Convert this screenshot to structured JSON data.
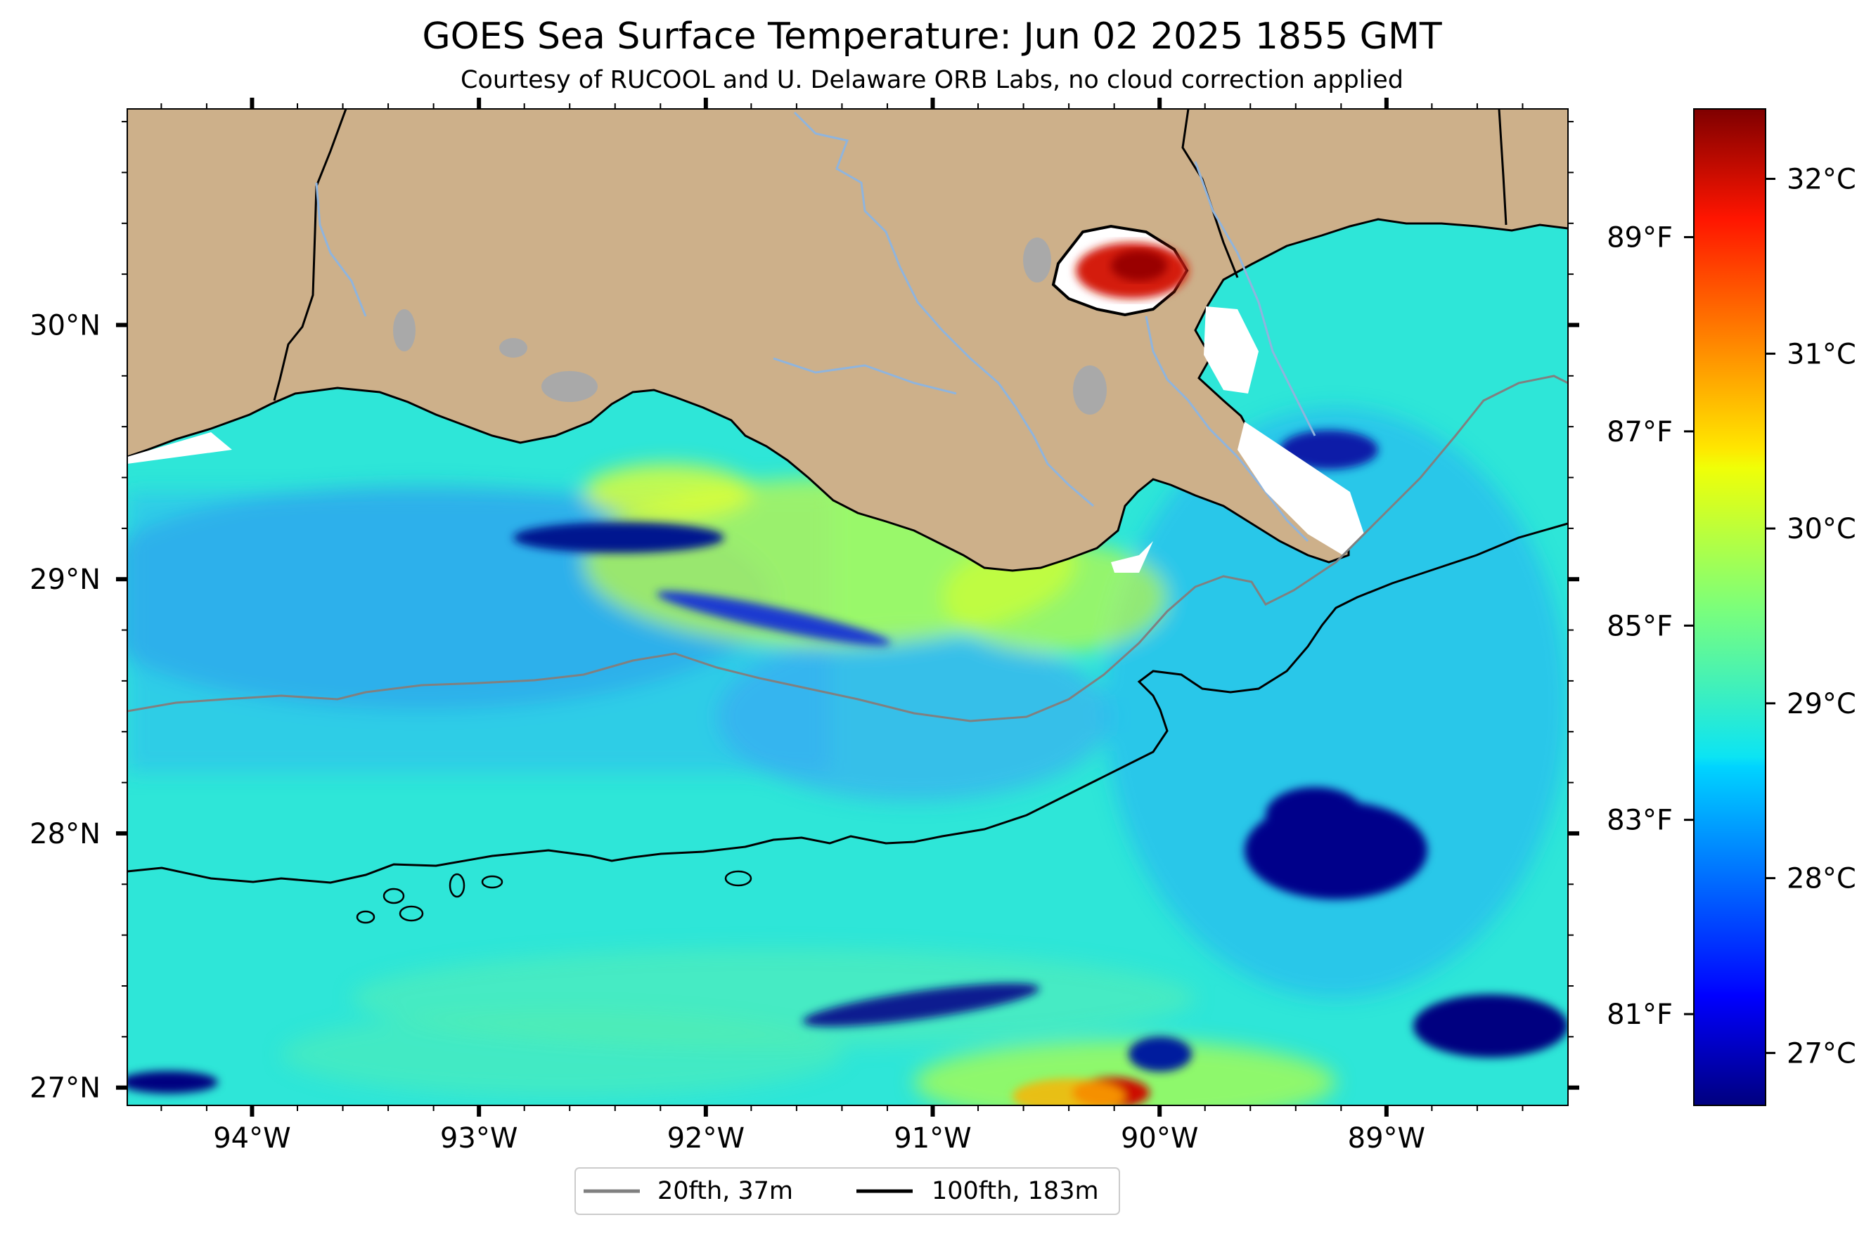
{
  "title": "GOES Sea Surface Temperature: Jun 02 2025 1855 GMT",
  "subtitle": "Courtesy of RUCOOL and U. Delaware ORB Labs, no cloud correction applied",
  "map": {
    "lon_range": [
      -94.55,
      -88.2
    ],
    "lat_range": [
      26.93,
      30.85
    ],
    "lon_ticks": [
      {
        "value": -94,
        "label": "94°W"
      },
      {
        "value": -93,
        "label": "93°W"
      },
      {
        "value": -92,
        "label": "92°W"
      },
      {
        "value": -91,
        "label": "91°W"
      },
      {
        "value": -90,
        "label": "90°W"
      },
      {
        "value": -89,
        "label": "89°W"
      }
    ],
    "lat_ticks": [
      {
        "value": 30,
        "label": "30°N"
      },
      {
        "value": 29,
        "label": "29°N"
      },
      {
        "value": 28,
        "label": "28°N"
      },
      {
        "value": 27,
        "label": "27°N"
      }
    ],
    "colors": {
      "land": "#cdb08a",
      "water": "#27e0e0",
      "lakes": "#a9a9a9",
      "rivers": "#8fb4dd",
      "coast": "#000000",
      "isobath_20": "#808080",
      "isobath_100": "#000000"
    }
  },
  "colorbar": {
    "colormap": "jet",
    "range_c": [
      26.7,
      32.4
    ],
    "celsius_ticks": [
      {
        "value": 27,
        "label": "27°C"
      },
      {
        "value": 28,
        "label": "28°C"
      },
      {
        "value": 29,
        "label": "29°C"
      },
      {
        "value": 30,
        "label": "30°C"
      },
      {
        "value": 31,
        "label": "31°C"
      },
      {
        "value": 32,
        "label": "32°C"
      }
    ],
    "fahrenheit_ticks": [
      {
        "value": 81,
        "label": "81°F"
      },
      {
        "value": 83,
        "label": "83°F"
      },
      {
        "value": 85,
        "label": "85°F"
      },
      {
        "value": 87,
        "label": "87°F"
      },
      {
        "value": 89,
        "label": "89°F"
      }
    ]
  },
  "legend": {
    "placement": "bottom-center",
    "items": [
      {
        "label": "20fth, 37m",
        "color": "#808080"
      },
      {
        "label": "100fth, 183m",
        "color": "#000000"
      }
    ]
  }
}
